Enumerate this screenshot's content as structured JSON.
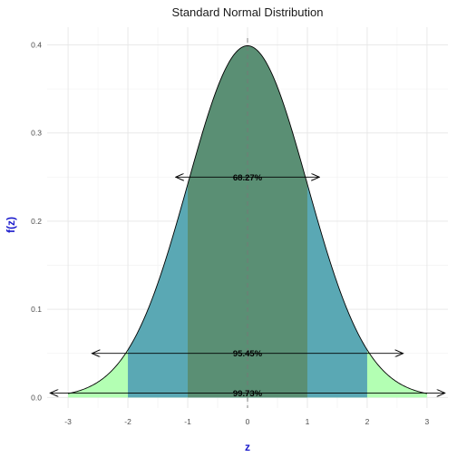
{
  "chart_data": {
    "type": "area",
    "title": "Standard Normal Distribution",
    "xlabel": "z",
    "ylabel": "f(z)",
    "xlim": [
      -3.35,
      3.35
    ],
    "ylim": [
      -0.012,
      0.42
    ],
    "x_ticks": [
      -3,
      -2,
      -1,
      0,
      1,
      2,
      3
    ],
    "x_tick_labels": [
      "-3",
      "-2",
      "-1",
      "0",
      "1",
      "2",
      "3"
    ],
    "y_ticks": [
      0.0,
      0.1,
      0.2,
      0.3,
      0.4
    ],
    "y_tick_labels": [
      "0.0",
      "0.1",
      "0.2",
      "0.3",
      "0.4"
    ],
    "grid": true,
    "curve": {
      "function": "standard normal density",
      "x_range": [
        -3,
        3
      ]
    },
    "regions": [
      {
        "from": -3,
        "to": 3,
        "color": "#b3ffb3"
      },
      {
        "from": -2,
        "to": 2,
        "color": "#5aa8b4"
      },
      {
        "from": -1,
        "to": 1,
        "color": "#5a8f74"
      }
    ],
    "mean_line": {
      "x": 0,
      "style": "dashed",
      "color": "#777777"
    },
    "annotations": [
      {
        "label": "68.27%",
        "y": 0.25,
        "x_from": -1.2,
        "x_to": 1.2
      },
      {
        "label": "95.45%",
        "y": 0.05,
        "x_from": -2.6,
        "x_to": 2.6
      },
      {
        "label": "99.73%",
        "y": 0.005,
        "x_from": -3.3,
        "x_to": 3.3
      }
    ]
  }
}
